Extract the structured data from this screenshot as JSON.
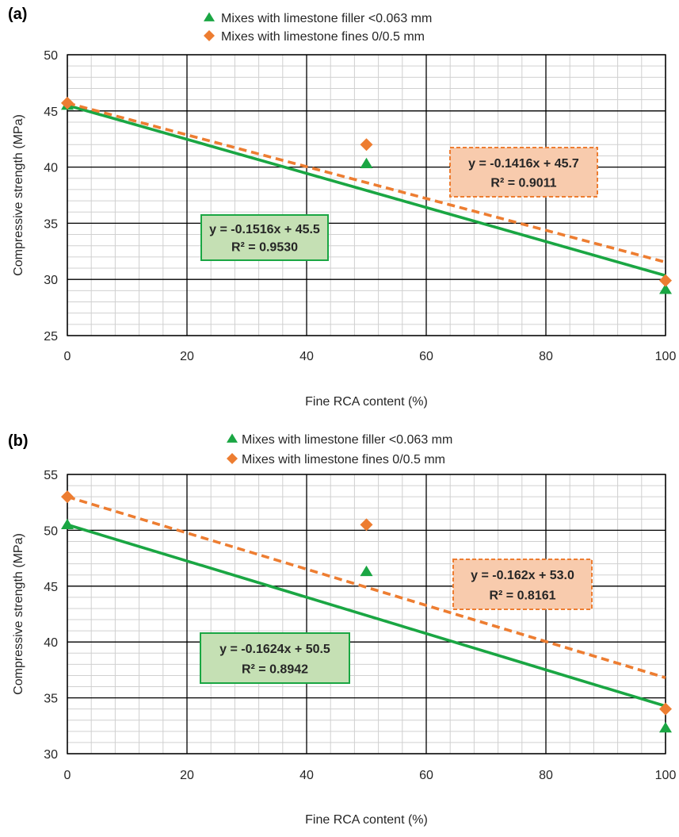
{
  "chart_data": [
    {
      "panel_label": "(a)",
      "type": "scatter",
      "xlabel": "Fine RCA content (%)",
      "ylabel": "Compressive strength (MPa)",
      "xlim": [
        0,
        100
      ],
      "ylim": [
        25,
        50
      ],
      "xticks": [
        0,
        20,
        40,
        60,
        80,
        100
      ],
      "yticks": [
        25,
        30,
        35,
        40,
        45,
        50
      ],
      "grid": "major and minor",
      "legend_position": "top-center",
      "series": [
        {
          "name": "Mixes with limestone filler <0.063 mm",
          "marker": "triangle",
          "color": "#1aa643",
          "points": [
            [
              0,
              45.5
            ],
            [
              50,
              40.3
            ],
            [
              100,
              29.1
            ]
          ],
          "trendline": {
            "slope": -0.1516,
            "intercept": 45.5,
            "style": "solid",
            "equation": "y = -0.1516x + 45.5",
            "r2": "R² = 0.9530",
            "box_fill": "#c5e0b4",
            "box_border": "#1aa643"
          }
        },
        {
          "name": "Mixes with limestone fines 0/0.5 mm",
          "marker": "diamond",
          "color": "#ed7d31",
          "points": [
            [
              0,
              45.7
            ],
            [
              50,
              42
            ],
            [
              100,
              29.9
            ]
          ],
          "trendline": {
            "slope": -0.1416,
            "intercept": 45.7,
            "style": "dashed",
            "equation": "y = -0.1416x + 45.7",
            "r2": "R² = 0.9011",
            "box_fill": "#f8cbad",
            "box_border": "#ed7d31"
          }
        }
      ]
    },
    {
      "panel_label": "(b)",
      "type": "scatter",
      "xlabel": "Fine RCA content (%)",
      "ylabel": "Compressive strength (MPa)",
      "xlim": [
        0,
        100
      ],
      "ylim": [
        30,
        55
      ],
      "xticks": [
        0,
        20,
        40,
        60,
        80,
        100
      ],
      "yticks": [
        30,
        35,
        40,
        45,
        50,
        55
      ],
      "grid": "major and minor",
      "legend_position": "top-center",
      "series": [
        {
          "name": "Mixes with limestone filler <0.063 mm",
          "marker": "triangle",
          "color": "#1aa643",
          "points": [
            [
              0,
              50.5
            ],
            [
              50,
              46.3
            ],
            [
              100,
              32.3
            ]
          ],
          "trendline": {
            "slope": -0.1624,
            "intercept": 50.5,
            "style": "solid",
            "equation": "y = -0.1624x + 50.5",
            "r2": "R² = 0.8942",
            "box_fill": "#c5e0b4",
            "box_border": "#1aa643"
          }
        },
        {
          "name": "Mixes with limestone fines 0/0.5 mm",
          "marker": "diamond",
          "color": "#ed7d31",
          "points": [
            [
              0,
              53
            ],
            [
              50,
              50.5
            ],
            [
              100,
              34
            ]
          ],
          "trendline": {
            "slope": -0.162,
            "intercept": 53.0,
            "style": "dashed",
            "equation": "y = -0.162x + 53.0",
            "r2": "R² = 0.8161",
            "box_fill": "#f8cbad",
            "box_border": "#ed7d31"
          }
        }
      ]
    }
  ]
}
